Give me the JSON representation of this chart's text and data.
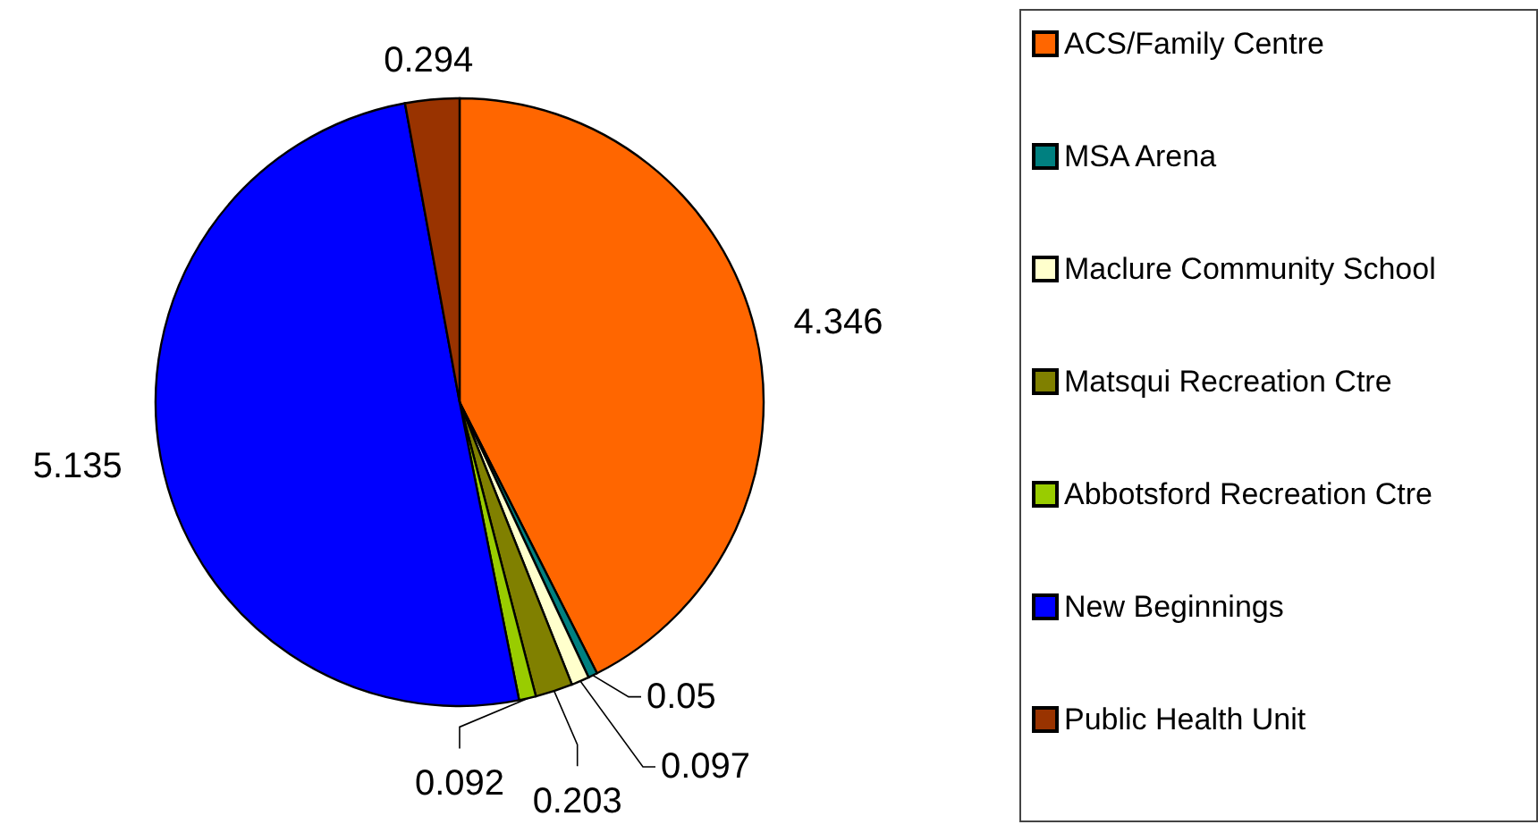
{
  "chart_data": {
    "type": "pie",
    "categories": [
      "ACS/Family Centre",
      "MSA Arena",
      "Maclure Community School",
      "Matsqui Recreation Ctre",
      "Abbotsford Recreation Ctre",
      "New Beginnings",
      "Public Health Unit"
    ],
    "values": [
      4.346,
      0.05,
      0.097,
      0.203,
      0.092,
      5.135,
      0.294
    ],
    "colors": [
      "#ff6600",
      "#008080",
      "#ffffcc",
      "#808000",
      "#99cc00",
      "#0000ff",
      "#993300"
    ],
    "data_labels": true,
    "legend": "right"
  }
}
